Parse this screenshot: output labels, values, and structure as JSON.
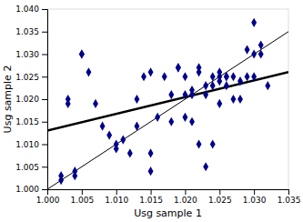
{
  "chart_data": {
    "type": "scatter",
    "xlabel": "Usg sample 1",
    "ylabel": "Usg sample 2",
    "xlim": [
      1.0,
      1.035
    ],
    "ylim": [
      1.0,
      1.04
    ],
    "xticks": [
      {
        "value": 1.0,
        "label": "1.000"
      },
      1.005,
      {
        "value": 1.01,
        "label": "1.010"
      },
      1.015,
      {
        "value": 1.02,
        "label": "1.020"
      },
      1.025,
      {
        "value": 1.03,
        "label": "1.030"
      },
      1.035
    ],
    "yticks": [
      {
        "value": 1.0,
        "label": "1.000"
      },
      1.005,
      {
        "value": 1.01,
        "label": "1.010"
      },
      1.015,
      {
        "value": 1.02,
        "label": "1.020"
      },
      1.025,
      {
        "value": 1.03,
        "label": "1.030"
      },
      1.035,
      {
        "value": 1.04,
        "label": "1.040"
      }
    ],
    "grid": false,
    "series": [
      {
        "type": "scatter",
        "color": "#00008B",
        "marker": "diamond",
        "x": [
          1.002,
          1.002,
          1.003,
          1.003,
          1.004,
          1.004,
          1.005,
          1.005,
          1.006,
          1.007,
          1.008,
          1.009,
          1.01,
          1.01,
          1.011,
          1.012,
          1.013,
          1.013,
          1.014,
          1.015,
          1.015,
          1.015,
          1.016,
          1.017,
          1.018,
          1.018,
          1.019,
          1.019,
          1.02,
          1.02,
          1.02,
          1.021,
          1.021,
          1.021,
          1.022,
          1.022,
          1.022,
          1.023,
          1.023,
          1.023,
          1.024,
          1.024,
          1.024,
          1.025,
          1.025,
          1.025,
          1.025,
          1.026,
          1.026,
          1.026,
          1.027,
          1.027,
          1.028,
          1.028,
          1.029,
          1.029,
          1.03,
          1.03,
          1.03,
          1.031,
          1.031,
          1.032
        ],
        "values": [
          1.003,
          1.002,
          1.019,
          1.02,
          1.003,
          1.004,
          1.03,
          1.03,
          1.026,
          1.019,
          1.014,
          1.012,
          1.009,
          1.01,
          1.011,
          1.008,
          1.02,
          1.014,
          1.025,
          1.026,
          1.004,
          1.008,
          1.016,
          1.025,
          1.015,
          1.021,
          1.027,
          1.027,
          1.021,
          1.025,
          1.016,
          1.021,
          1.022,
          1.015,
          1.027,
          1.026,
          1.01,
          1.023,
          1.021,
          1.005,
          1.025,
          1.01,
          1.023,
          1.025,
          1.026,
          1.019,
          1.024,
          1.025,
          1.023,
          1.025,
          1.02,
          1.025,
          1.024,
          1.02,
          1.025,
          1.031,
          1.03,
          1.025,
          1.037,
          1.032,
          1.03,
          1.023
        ]
      },
      {
        "type": "line",
        "color": "#000000",
        "line_style": "solid",
        "x": [
          1.0,
          1.035
        ],
        "values": [
          1.0,
          1.035
        ]
      },
      {
        "type": "line",
        "color": "#000000",
        "line_style": "solid",
        "x": [
          1.0,
          1.035
        ],
        "values": [
          1.013,
          1.026
        ]
      }
    ]
  }
}
